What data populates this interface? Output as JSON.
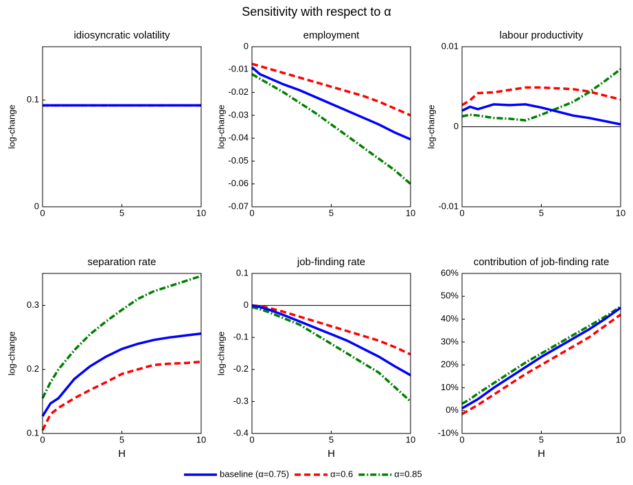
{
  "title": "Sensitivity with respect to α",
  "legend": [
    {
      "name": "baseline (α=0.75)",
      "color": "#0000ff",
      "dash": "solid"
    },
    {
      "name": "α=0.6",
      "color": "#ff0000",
      "dash": "dashed"
    },
    {
      "name": "α=0.85",
      "color": "#007f00",
      "dash": "dashdot"
    }
  ],
  "chart_data": [
    {
      "type": "line",
      "title": "idiosyncratic volatility",
      "ylabel": "log-change",
      "x": [
        0,
        0.5,
        1,
        2,
        3,
        4,
        5,
        6,
        7,
        8,
        9,
        10
      ],
      "xlim": [
        0,
        10
      ],
      "xticks": [
        0,
        5,
        10
      ],
      "ylim": [
        0,
        0.15
      ],
      "yticks": [
        0,
        0.1
      ],
      "series": [
        {
          "values": [
            0.095,
            0.095,
            0.095,
            0.095,
            0.095,
            0.095,
            0.095,
            0.095,
            0.095,
            0.095,
            0.095,
            0.095
          ]
        },
        {
          "values": [
            0.095,
            0.095,
            0.095,
            0.095,
            0.095,
            0.095,
            0.095,
            0.095,
            0.095,
            0.095,
            0.095,
            0.095
          ]
        },
        {
          "values": [
            0.095,
            0.095,
            0.095,
            0.095,
            0.095,
            0.095,
            0.095,
            0.095,
            0.095,
            0.095,
            0.095,
            0.095
          ]
        }
      ]
    },
    {
      "type": "line",
      "title": "employment",
      "ylabel": "log-change",
      "x": [
        0,
        0.5,
        1,
        2,
        3,
        4,
        5,
        6,
        7,
        8,
        9,
        10
      ],
      "xlim": [
        0,
        10
      ],
      "xticks": [
        0,
        5,
        10
      ],
      "ylim": [
        -0.07,
        0
      ],
      "yticks": [
        -0.07,
        -0.06,
        -0.05,
        -0.04,
        -0.03,
        -0.02,
        -0.01,
        0
      ],
      "series": [
        {
          "values": [
            -0.009,
            -0.012,
            -0.0135,
            -0.0165,
            -0.019,
            -0.022,
            -0.025,
            -0.028,
            -0.031,
            -0.034,
            -0.0375,
            -0.0405
          ]
        },
        {
          "values": [
            -0.0075,
            -0.0085,
            -0.0095,
            -0.0115,
            -0.0135,
            -0.0155,
            -0.0175,
            -0.0195,
            -0.0215,
            -0.024,
            -0.027,
            -0.03
          ]
        },
        {
          "values": [
            -0.012,
            -0.014,
            -0.016,
            -0.02,
            -0.0245,
            -0.029,
            -0.034,
            -0.039,
            -0.044,
            -0.049,
            -0.054,
            -0.06
          ]
        }
      ]
    },
    {
      "type": "line",
      "title": "labour productivity",
      "ylabel": "log-change",
      "zero_line": true,
      "x": [
        0,
        0.5,
        1,
        2,
        3,
        4,
        5,
        6,
        7,
        8,
        9,
        10
      ],
      "xlim": [
        0,
        10
      ],
      "xticks": [
        0,
        5,
        10
      ],
      "ylim": [
        -0.01,
        0.01
      ],
      "yticks": [
        -0.01,
        0,
        0.01
      ],
      "series": [
        {
          "values": [
            0.002,
            0.0025,
            0.0022,
            0.0028,
            0.0027,
            0.0028,
            0.0024,
            0.0019,
            0.0014,
            0.0011,
            0.0007,
            0.0003
          ]
        },
        {
          "values": [
            0.0027,
            0.0033,
            0.0042,
            0.0043,
            0.0046,
            0.0049,
            0.0049,
            0.0048,
            0.0047,
            0.0044,
            0.0039,
            0.0034
          ]
        },
        {
          "values": [
            0.0013,
            0.0015,
            0.0014,
            0.0011,
            0.001,
            0.0008,
            0.0015,
            0.0023,
            0.0031,
            0.0043,
            0.0057,
            0.0072
          ]
        }
      ]
    },
    {
      "type": "line",
      "title": "separation rate",
      "ylabel": "log-change",
      "xlabel": "H",
      "x": [
        0,
        0.5,
        1,
        2,
        3,
        4,
        5,
        6,
        7,
        8,
        9,
        10
      ],
      "xlim": [
        0,
        10
      ],
      "xticks": [
        0,
        5,
        10
      ],
      "ylim": [
        0.1,
        0.35
      ],
      "yticks": [
        0.1,
        0.2,
        0.3
      ],
      "series": [
        {
          "values": [
            0.127,
            0.147,
            0.155,
            0.185,
            0.205,
            0.22,
            0.232,
            0.24,
            0.246,
            0.25,
            0.253,
            0.256
          ]
        },
        {
          "values": [
            0.105,
            0.13,
            0.14,
            0.155,
            0.168,
            0.18,
            0.193,
            0.2,
            0.207,
            0.209,
            0.21,
            0.212
          ]
        },
        {
          "values": [
            0.155,
            0.18,
            0.2,
            0.23,
            0.255,
            0.275,
            0.293,
            0.31,
            0.322,
            0.33,
            0.338,
            0.346
          ]
        }
      ]
    },
    {
      "type": "line",
      "title": "job-finding rate",
      "ylabel": "log-change",
      "xlabel": "H",
      "zero_line": true,
      "x": [
        0,
        0.5,
        1,
        2,
        3,
        4,
        5,
        6,
        7,
        8,
        9,
        10
      ],
      "xlim": [
        0,
        10
      ],
      "xticks": [
        0,
        5,
        10
      ],
      "ylim": [
        -0.4,
        0.1
      ],
      "yticks": [
        -0.4,
        -0.3,
        -0.2,
        -0.1,
        0,
        0.1
      ],
      "series": [
        {
          "values": [
            0,
            -0.005,
            -0.012,
            -0.03,
            -0.05,
            -0.07,
            -0.09,
            -0.11,
            -0.135,
            -0.16,
            -0.19,
            -0.218
          ]
        },
        {
          "values": [
            0,
            -0.002,
            -0.007,
            -0.02,
            -0.035,
            -0.05,
            -0.065,
            -0.08,
            -0.095,
            -0.11,
            -0.13,
            -0.153
          ]
        },
        {
          "values": [
            -0.005,
            -0.012,
            -0.02,
            -0.04,
            -0.06,
            -0.09,
            -0.12,
            -0.15,
            -0.18,
            -0.21,
            -0.255,
            -0.3
          ]
        }
      ]
    },
    {
      "type": "line",
      "title": "contribution of job-finding rate",
      "xlabel": "H",
      "x": [
        0,
        0.5,
        1,
        2,
        3,
        4,
        5,
        6,
        7,
        8,
        9,
        10
      ],
      "xlim": [
        0,
        10
      ],
      "xticks": [
        0,
        5,
        10
      ],
      "ylim": [
        -10,
        60
      ],
      "yticks": [
        {
          "value": -10,
          "label": "-10%"
        },
        {
          "value": 0,
          "label": "0%"
        },
        {
          "value": 10,
          "label": "10%"
        },
        {
          "value": 20,
          "label": "20%"
        },
        {
          "value": 30,
          "label": "30%"
        },
        {
          "value": 40,
          "label": "40%"
        },
        {
          "value": 50,
          "label": "50%"
        },
        {
          "value": 60,
          "label": "60%"
        }
      ],
      "series": [
        {
          "values": [
            1,
            3,
            5,
            10,
            14.5,
            19,
            23.5,
            27.5,
            31.5,
            35.5,
            40,
            45
          ]
        },
        {
          "values": [
            -1.5,
            0.5,
            2.5,
            7,
            11.5,
            16,
            20,
            24,
            28,
            32,
            37,
            42
          ]
        },
        {
          "values": [
            3,
            5,
            7.5,
            12,
            16.5,
            21,
            25,
            29,
            33,
            37,
            41,
            45.5
          ]
        }
      ]
    }
  ]
}
